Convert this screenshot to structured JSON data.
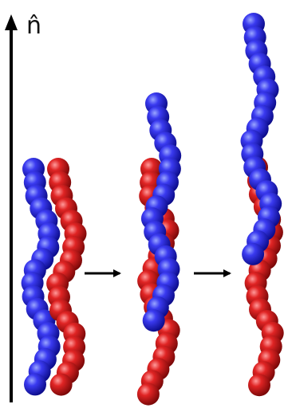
{
  "diagram": {
    "axis_label": "n̂",
    "colors": {
      "chain_a": "#1b1bd8",
      "chain_b": "#c81a1a",
      "axis": "#000000",
      "arrow": "#000000"
    },
    "panels": [
      {
        "id": "initial",
        "description_visible": false
      },
      {
        "id": "intermediate",
        "description_visible": false
      },
      {
        "id": "final",
        "description_visible": false
      }
    ],
    "transitions": [
      {
        "from": "initial",
        "to": "intermediate",
        "icon": "right-arrow-icon"
      },
      {
        "from": "intermediate",
        "to": "final",
        "icon": "right-arrow-icon"
      }
    ]
  }
}
